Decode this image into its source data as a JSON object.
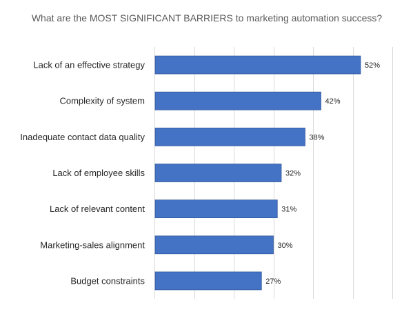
{
  "chart_data": {
    "type": "bar",
    "orientation": "horizontal",
    "title": "What are the MOST SIGNIFICANT  BARRIERS to marketing automation success?",
    "categories": [
      "Lack of an effective strategy",
      "Complexity of system",
      "Inadequate contact data quality",
      "Lack of employee skills",
      "Lack of relevant content",
      "Marketing-sales alignment",
      "Budget constraints"
    ],
    "values": [
      52,
      42,
      38,
      32,
      31,
      30,
      27
    ],
    "value_labels": [
      "52%",
      "42%",
      "38%",
      "32%",
      "31%",
      "30%",
      "27%"
    ],
    "unit": "%",
    "xlim": [
      0,
      60
    ],
    "grid": true,
    "legend": "none",
    "colors": {
      "bar": "#4472C4",
      "bar_edge": "#2F5597",
      "grid": "#D9D9D9",
      "title": "#595959",
      "text": "#262626"
    }
  }
}
